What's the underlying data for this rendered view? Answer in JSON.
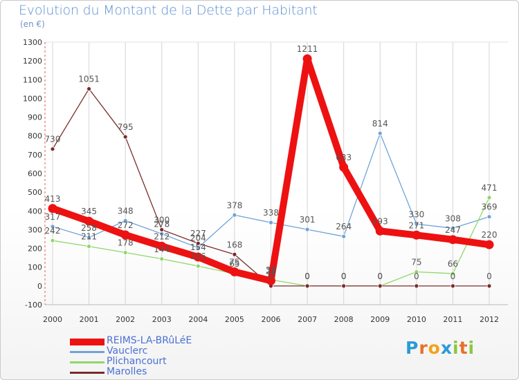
{
  "chart_data": {
    "type": "line",
    "title": "Evolution du Montant de la Dette par Habitant",
    "subtitle": "(en €)",
    "categories": [
      "2000",
      "2001",
      "2002",
      "2003",
      "2004",
      "2005",
      "2006",
      "2007",
      "2008",
      "2009",
      "2010",
      "2011",
      "2012"
    ],
    "ylim": [
      -100,
      1300
    ],
    "yticks": [
      -100,
      0,
      100,
      200,
      300,
      400,
      500,
      600,
      700,
      800,
      900,
      1000,
      1100,
      1200,
      1300
    ],
    "grid": "vertical",
    "legend_position": "bottom-left",
    "series": [
      {
        "name": "REIMS-LA-BRûLéE",
        "color": "#ee1111",
        "emphasis": true,
        "values": [
          413,
          345,
          272,
          212,
          154,
          75,
          28,
          1211,
          633,
          293,
          271,
          247,
          220
        ]
      },
      {
        "name": "Vauclerc",
        "color": "#6fa3d9",
        "values": [
          317,
          258,
          348,
          278,
          204,
          378,
          338,
          301,
          264,
          814,
          330,
          308,
          369
        ]
      },
      {
        "name": "Plichancourt",
        "color": "#8ed86a",
        "values": [
          242,
          211,
          178,
          144,
          106,
          65,
          33,
          0,
          0,
          0,
          75,
          66,
          471
        ]
      },
      {
        "name": "Marolles",
        "color": "#7a2a2a",
        "values": [
          730,
          1051,
          795,
          300,
          227,
          168,
          0,
          0,
          0,
          0,
          0,
          0,
          0
        ]
      }
    ],
    "label_order": [
      3,
      1,
      2,
      0
    ]
  },
  "logo": {
    "text": "Proxiti",
    "letters": [
      "P",
      "r",
      "o",
      "x",
      "i",
      "t",
      "i"
    ],
    "colors": [
      "#2a9bd6",
      "#e8702a",
      "#f2a31a",
      "#2a9bd6",
      "#8cc63e",
      "#e8702a",
      "#8cc63e"
    ]
  }
}
